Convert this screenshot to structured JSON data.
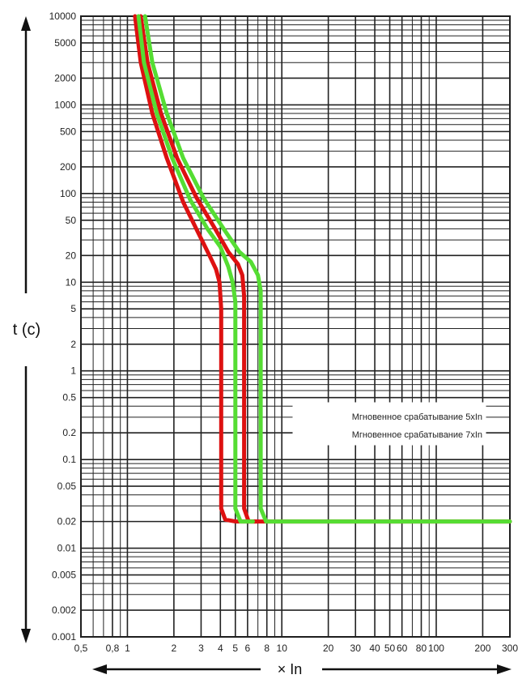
{
  "chart_data": {
    "type": "line",
    "title": "",
    "xlabel": "× In",
    "ylabel": "t (c)",
    "x_scale": "log",
    "y_scale": "log",
    "xlim": [
      0.5,
      300
    ],
    "ylim": [
      0.001,
      10000
    ],
    "grid": true,
    "x_ticks": [
      {
        "v": 0.5,
        "label": "0,5"
      },
      {
        "v": 0.8,
        "label": "0,8"
      },
      {
        "v": 1,
        "label": "1"
      },
      {
        "v": 2,
        "label": "2"
      },
      {
        "v": 3,
        "label": "3"
      },
      {
        "v": 4,
        "label": "4"
      },
      {
        "v": 5,
        "label": "5"
      },
      {
        "v": 6,
        "label": "6"
      },
      {
        "v": 8,
        "label": "8"
      },
      {
        "v": 10,
        "label": "10"
      },
      {
        "v": 20,
        "label": "20"
      },
      {
        "v": 30,
        "label": "30"
      },
      {
        "v": 40,
        "label": "40"
      },
      {
        "v": 50,
        "label": "50"
      },
      {
        "v": 60,
        "label": "60"
      },
      {
        "v": 80,
        "label": "80"
      },
      {
        "v": 100,
        "label": "100"
      },
      {
        "v": 200,
        "label": "200"
      },
      {
        "v": 300,
        "label": "300"
      }
    ],
    "y_ticks": [
      {
        "v": 10000,
        "label": "10000"
      },
      {
        "v": 5000,
        "label": "5000"
      },
      {
        "v": 2000,
        "label": "2000"
      },
      {
        "v": 1000,
        "label": "1000"
      },
      {
        "v": 500,
        "label": "500"
      },
      {
        "v": 200,
        "label": "200"
      },
      {
        "v": 100,
        "label": "100"
      },
      {
        "v": 50,
        "label": "50"
      },
      {
        "v": 20,
        "label": "20"
      },
      {
        "v": 10,
        "label": "10"
      },
      {
        "v": 5,
        "label": "5"
      },
      {
        "v": 2,
        "label": "2"
      },
      {
        "v": 1,
        "label": "1"
      },
      {
        "v": 0.5,
        "label": "0.5"
      },
      {
        "v": 0.2,
        "label": "0.2"
      },
      {
        "v": 0.1,
        "label": "0.1"
      },
      {
        "v": 0.05,
        "label": "0.05"
      },
      {
        "v": 0.02,
        "label": "0.02"
      },
      {
        "v": 0.01,
        "label": "0.01"
      },
      {
        "v": 0.005,
        "label": "0.005"
      },
      {
        "v": 0.002,
        "label": "0.002"
      },
      {
        "v": 0.001,
        "label": "0.001"
      }
    ],
    "legend": [
      "Мгновенное срабатывание 5xIn",
      "Мгновенное срабатывание 7xIn"
    ],
    "legend_position": "center-right",
    "series": [
      {
        "group": "5xIn",
        "bound": "lower",
        "color": "#dd1111",
        "points": [
          [
            1.12,
            10000
          ],
          [
            1.22,
            3000
          ],
          [
            1.45,
            800
          ],
          [
            1.8,
            250
          ],
          [
            2.3,
            80
          ],
          [
            2.9,
            35
          ],
          [
            3.4,
            20
          ],
          [
            3.75,
            14
          ],
          [
            3.95,
            10
          ],
          [
            4.05,
            5
          ],
          [
            4.05,
            0.028
          ],
          [
            4.3,
            0.021
          ],
          [
            5.0,
            0.02
          ],
          [
            300,
            0.02
          ]
        ]
      },
      {
        "group": "5xIn",
        "bound": "upper",
        "color": "#dd1111",
        "points": [
          [
            1.22,
            10000
          ],
          [
            1.35,
            3000
          ],
          [
            1.65,
            800
          ],
          [
            2.1,
            250
          ],
          [
            2.8,
            90
          ],
          [
            3.7,
            40
          ],
          [
            4.5,
            22
          ],
          [
            5.2,
            16
          ],
          [
            5.55,
            12
          ],
          [
            5.7,
            7
          ],
          [
            5.7,
            0.028
          ],
          [
            6.1,
            0.02
          ],
          [
            7.0,
            0.02
          ]
        ]
      },
      {
        "group": "7xIn",
        "bound": "lower",
        "color": "#55dd33",
        "points": [
          [
            1.18,
            10000
          ],
          [
            1.28,
            3000
          ],
          [
            1.55,
            800
          ],
          [
            1.95,
            250
          ],
          [
            2.55,
            85
          ],
          [
            3.3,
            40
          ],
          [
            4.0,
            25
          ],
          [
            4.5,
            15
          ],
          [
            4.8,
            10
          ],
          [
            5.0,
            6
          ],
          [
            5.0,
            0.028
          ],
          [
            5.4,
            0.02
          ],
          [
            6.5,
            0.02
          ]
        ]
      },
      {
        "group": "7xIn",
        "bound": "upper",
        "color": "#55dd33",
        "points": [
          [
            1.3,
            10000
          ],
          [
            1.45,
            3000
          ],
          [
            1.8,
            800
          ],
          [
            2.3,
            250
          ],
          [
            3.1,
            90
          ],
          [
            4.2,
            40
          ],
          [
            5.3,
            22
          ],
          [
            6.3,
            17
          ],
          [
            7.0,
            12
          ],
          [
            7.3,
            8
          ],
          [
            7.3,
            0.028
          ],
          [
            7.9,
            0.02
          ],
          [
            9.0,
            0.02
          ],
          [
            300,
            0.02
          ]
        ]
      }
    ]
  }
}
